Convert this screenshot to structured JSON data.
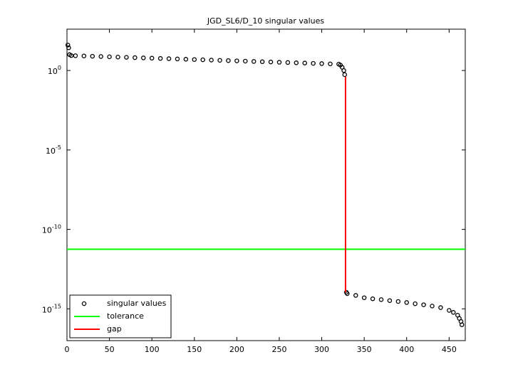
{
  "chart_data": {
    "type": "scatter",
    "title": "JGD_SL6/D_10 singular values",
    "xlim": [
      0,
      469
    ],
    "ylim": [
      1e-17,
      400
    ],
    "log_y": true,
    "legend": "lower left",
    "xticks": [
      0,
      50,
      100,
      150,
      200,
      250,
      300,
      350,
      400,
      450
    ],
    "yticks": [
      {
        "value": 1,
        "label": "10^0"
      },
      {
        "value": 1e-05,
        "label": "10^-5"
      },
      {
        "value": 1e-10,
        "label": "10^-10"
      },
      {
        "value": 1e-15,
        "label": "10^-15"
      }
    ],
    "series": [
      {
        "name": "singular values",
        "kind": "markers",
        "color": "#000000",
        "x": [
          1,
          2,
          3,
          5,
          10,
          20,
          30,
          40,
          50,
          60,
          70,
          80,
          90,
          100,
          110,
          120,
          130,
          140,
          150,
          160,
          170,
          180,
          190,
          200,
          210,
          220,
          230,
          240,
          250,
          260,
          270,
          280,
          290,
          300,
          310,
          320,
          322,
          324,
          326,
          327,
          329,
          330,
          340,
          350,
          360,
          370,
          380,
          390,
          400,
          410,
          420,
          430,
          440,
          450,
          455,
          460,
          462,
          464,
          465
        ],
        "values": [
          40,
          27,
          10,
          8.7,
          8.53,
          8.2,
          7.88,
          7.59,
          7.29,
          7.01,
          6.75,
          6.47,
          6.22,
          5.98,
          5.75,
          5.53,
          5.32,
          5.12,
          4.91,
          4.72,
          4.54,
          4.36,
          4.2,
          4.04,
          3.88,
          3.72,
          3.58,
          3.44,
          3.31,
          3.18,
          3.06,
          2.94,
          2.82,
          2.72,
          2.61,
          2.51,
          2.2,
          1.6,
          1.0,
          0.55,
          1.1e-14,
          9e-15,
          7e-15,
          5e-15,
          4.3e-15,
          3.8e-15,
          3.3e-15,
          2.9e-15,
          2.5e-15,
          2.1e-15,
          1.8e-15,
          1.5e-15,
          1.2e-15,
          8e-16,
          6e-16,
          4e-16,
          2.5e-16,
          1.6e-16,
          1e-16
        ]
      },
      {
        "name": "tolerance",
        "kind": "line",
        "color": "#00ff00",
        "x": [
          0,
          469
        ],
        "values": [
          5.6e-12,
          5.6e-12
        ]
      },
      {
        "name": "gap",
        "kind": "line",
        "color": "#ff0000",
        "x": [
          328,
          328
        ],
        "values": [
          0.4,
          1.1e-14
        ]
      }
    ]
  }
}
